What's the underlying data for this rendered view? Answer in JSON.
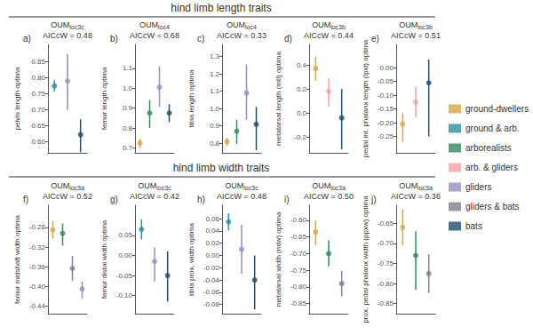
{
  "chart_data": {
    "type": "scatter",
    "legend": "right",
    "grid": false,
    "series": [
      {
        "name": "ground-dwellers",
        "color": "#D4A843"
      },
      {
        "name": "ground & arb.",
        "color": "#2A8FA0"
      },
      {
        "name": "arborealists",
        "color": "#2E8B5A"
      },
      {
        "name": "arb. & gliders",
        "color": "#F4A0A0"
      },
      {
        "name": "gliders",
        "color": "#9B8DC0"
      },
      {
        "name": "gliders & bats",
        "color": "#808090"
      },
      {
        "name": "bats",
        "color": "#1C4E6E"
      }
    ],
    "sections": [
      {
        "title": "hind limb length traits",
        "panels": [
          {
            "type": "scatter",
            "annotations": [
              "a)"
            ],
            "title": "OUM",
            "title_subscript": "loc3c",
            "subtitle": "AICcW = 0.48",
            "ylabel": "pelvis length optima",
            "ylim": [
              0.565,
              0.905
            ],
            "yticks": [
              {
                "value": 0.6,
                "label": "0.60"
              },
              0.65,
              {
                "value": 0.7,
                "label": "0.70"
              },
              0.75,
              {
                "value": 0.8,
                "label": "0.80"
              },
              0.85
            ],
            "tick_labels": "y",
            "marker": "circle",
            "categories": [
              null,
              null,
              null
            ],
            "values": [
              0.775,
              0.79,
              0.622
            ],
            "yerr_lo": [
              0.018,
              0.09,
              0.055
            ],
            "yerr_hi": [
              0.018,
              0.085,
              0.048
            ],
            "colors": [
              "#2A8FA0",
              "#9B8DC0",
              "#1C4E6E"
            ]
          },
          {
            "type": "scatter",
            "annotations": [
              "b)"
            ],
            "title": "OUM",
            "title_subscript": "loc4",
            "subtitle": "AICcW = 0.68",
            "ylabel": "femur length optima",
            "ylim": [
              0.675,
              1.22
            ],
            "yticks": [
              0.7,
              0.8,
              0.9,
              {
                "value": 1.0,
                "label": "1.0"
              },
              1.1
            ],
            "tick_labels": "y",
            "marker": "circle",
            "categories": [
              null,
              null,
              null,
              null
            ],
            "values": [
              0.724,
              0.875,
              1.005,
              0.875
            ],
            "yerr_lo": [
              0.025,
              0.075,
              0.1,
              0.045
            ],
            "yerr_hi": [
              0.022,
              0.065,
              0.105,
              0.045
            ],
            "colors": [
              "#D4A843",
              "#2E8B5A",
              "#9B8DC0",
              "#1C4E6E"
            ]
          },
          {
            "type": "scatter",
            "annotations": [
              "c)"
            ],
            "title": "OUM",
            "title_subscript": "loc4",
            "subtitle": "AICcW = 0.33",
            "ylabel": "tibia length optima",
            "ylim": [
              0.745,
              1.37
            ],
            "yticks": [
              0.8,
              0.9,
              {
                "value": 1.0,
                "label": "1.0"
              },
              1.1,
              1.2,
              1.3
            ],
            "tick_labels": "y",
            "marker": "circle",
            "categories": [
              null,
              null,
              null,
              null
            ],
            "values": [
              0.81,
              0.87,
              1.09,
              0.91
            ],
            "yerr_lo": [
              0.025,
              0.075,
              0.155,
              0.15
            ],
            "yerr_hi": [
              0.022,
              0.065,
              0.165,
              0.1
            ],
            "colors": [
              "#D4A843",
              "#2E8B5A",
              "#9B8DC0",
              "#1C4E6E"
            ]
          },
          {
            "type": "scatter",
            "annotations": [
              "d)"
            ],
            "title": "OUM",
            "title_subscript": "loc3b",
            "subtitle": "AICcW = 0.44",
            "ylabel": "metatarsal length (mtl) optima",
            "ylim": [
              -0.33,
              0.57
            ],
            "yticks": [
              -0.2,
              {
                "value": 0.0,
                "label": "0.0"
              },
              0.2,
              0.4
            ],
            "tick_labels": "y",
            "marker": "circle",
            "categories": [
              null,
              null,
              null
            ],
            "values": [
              0.37,
              0.18,
              -0.04
            ],
            "yerr_lo": [
              0.1,
              0.125,
              0.26
            ],
            "yerr_hi": [
              0.1,
              0.11,
              0.24
            ],
            "colors": [
              "#D4A843",
              "#F4A0A0",
              "#1C4E6E"
            ]
          },
          {
            "type": "scatter",
            "annotations": [
              "e)"
            ],
            "title": "OUM",
            "title_subscript": "loc3b",
            "subtitle": "AICcW = 0.51",
            "ylabel": "pedal int. phalanx length (lpxl) optima",
            "ylim": [
              -0.31,
              0.085
            ],
            "yticks": [
              {
                "value": 0.0,
                "label": "0.00"
              },
              -0.05,
              {
                "value": -0.1,
                "label": "-0.10"
              },
              -0.15,
              {
                "value": -0.2,
                "label": "-0.20"
              },
              -0.25
            ],
            "tick_labels": "y",
            "marker": "circle",
            "categories": [
              null,
              null,
              null
            ],
            "values": [
              -0.205,
              -0.125,
              -0.055
            ],
            "yerr_lo": [
              0.065,
              0.055,
              0.195
            ],
            "yerr_hi": [
              0.04,
              0.055,
              0.085
            ],
            "colors": [
              "#D4A843",
              "#F4A0A0",
              "#1C4E6E"
            ]
          }
        ]
      },
      {
        "title": "hind limb width traits",
        "panels": [
          {
            "type": "scatter",
            "annotations": [
              "f)"
            ],
            "title": "OUM",
            "title_subscript": "loc3a",
            "subtitle": "AICcW = 0.52",
            "ylabel": "femur midshaft width optima",
            "ylim": [
              -0.455,
              -0.235
            ],
            "yticks": [
              -0.44,
              {
                "value": -0.4,
                "label": "-0.40"
              },
              -0.36,
              -0.32,
              -0.28
            ],
            "tick_labels": "y",
            "marker": "circle",
            "categories": [
              null,
              null,
              null,
              null
            ],
            "values": [
              -0.285,
              -0.292,
              -0.363,
              -0.405
            ],
            "yerr_lo": [
              0.018,
              0.025,
              0.025,
              0.02
            ],
            "yerr_hi": [
              0.018,
              0.02,
              0.025,
              0.015
            ],
            "colors": [
              "#D4A843",
              "#2E8B5A",
              "#808090",
              "#9B8DC0"
            ]
          },
          {
            "type": "scatter",
            "annotations": [
              "g)"
            ],
            "title": "OUM",
            "title_subscript": "loc3c",
            "subtitle": "AICcW = 0.42",
            "ylabel": "femur distal width optima",
            "ylim": [
              -0.145,
              0.125
            ],
            "yticks": [
              0.05,
              {
                "value": 0.0,
                "label": "0.00"
              },
              -0.05,
              {
                "value": -0.1,
                "label": "-0.10"
              }
            ],
            "tick_labels": "y",
            "marker": "circle",
            "categories": [
              null,
              null,
              null
            ],
            "values": [
              0.065,
              -0.015,
              -0.05
            ],
            "yerr_lo": [
              0.025,
              0.05,
              0.065
            ],
            "yerr_hi": [
              0.025,
              0.035,
              0.06
            ],
            "colors": [
              "#2A8FA0",
              "#9B8DC0",
              "#1C4E6E"
            ]
          },
          {
            "type": "scatter",
            "annotations": [
              "h)"
            ],
            "title": "OUM",
            "title_subscript": "loc3c",
            "subtitle": "AICcW = 0.48",
            "ylabel": "tibia prox. width optima",
            "ylim": [
              -0.095,
              0.082
            ],
            "yticks": [
              0.06,
              0.04,
              0.02,
              {
                "value": 0.0,
                "label": "0.00"
              },
              -0.02,
              -0.04,
              -0.06,
              -0.08
            ],
            "tick_labels": "y",
            "marker": "circle",
            "categories": [
              null,
              null,
              null
            ],
            "values": [
              0.055,
              0.01,
              -0.04
            ],
            "yerr_lo": [
              0.014,
              0.04,
              0.048
            ],
            "yerr_hi": [
              0.014,
              0.04,
              0.04
            ],
            "colors": [
              "#2A8FA0",
              "#9B8DC0",
              "#1C4E6E"
            ]
          },
          {
            "type": "scatter",
            "annotations": [
              "i)"
            ],
            "title": "OUM",
            "title_subscript": "loc3a",
            "subtitle": "AICcW = 0.50",
            "ylabel": "metatarsal width (mtw) optima",
            "ylim": [
              -0.88,
              -0.555
            ],
            "yticks": [
              {
                "value": -0.6,
                "label": "-0.60"
              },
              -0.65,
              {
                "value": -0.7,
                "label": "-0.70"
              },
              -0.75,
              {
                "value": -0.8,
                "label": "-0.80"
              },
              -0.85
            ],
            "tick_labels": "y",
            "marker": "circle",
            "categories": [
              null,
              null,
              null
            ],
            "values": [
              -0.635,
              -0.7,
              -0.79
            ],
            "yerr_lo": [
              0.04,
              0.038,
              0.038
            ],
            "yerr_hi": [
              0.035,
              0.04,
              0.038
            ],
            "colors": [
              "#D4A843",
              "#2E8B5A",
              "#808090"
            ]
          },
          {
            "type": "scatter",
            "annotations": [
              "j)"
            ],
            "title": "OUM",
            "title_subscript": "loc3a",
            "subtitle": "AICcW = 0.36",
            "ylabel": "prox. pedal phalanx width (ppxw) optima",
            "ylim": [
              -0.875,
              -0.605
            ],
            "yticks": [
              -0.65,
              {
                "value": -0.7,
                "label": "-0.70"
              },
              -0.75,
              {
                "value": -0.8,
                "label": "-0.80"
              },
              -0.85
            ],
            "tick_labels": "y",
            "marker": "circle",
            "categories": [
              null,
              null,
              null
            ],
            "values": [
              -0.66,
              -0.73,
              -0.775
            ],
            "yerr_lo": [
              0.045,
              0.085,
              0.048
            ],
            "yerr_hi": [
              0.045,
              0.06,
              0.048
            ],
            "colors": [
              "#D4A843",
              "#2E8B5A",
              "#808090"
            ]
          }
        ]
      }
    ]
  }
}
